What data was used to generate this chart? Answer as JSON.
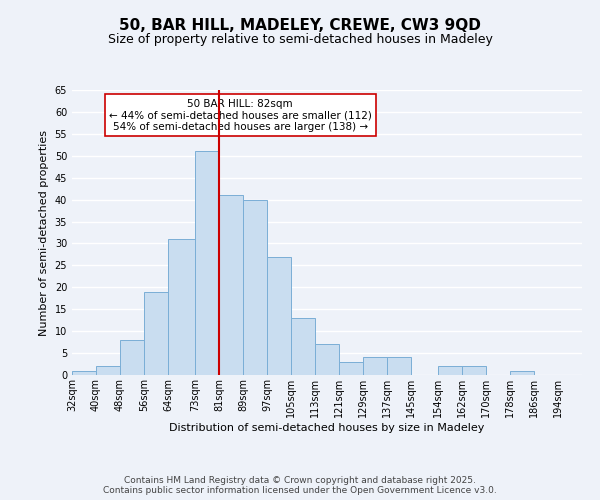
{
  "title": "50, BAR HILL, MADELEY, CREWE, CW3 9QD",
  "subtitle": "Size of property relative to semi-detached houses in Madeley",
  "xlabel": "Distribution of semi-detached houses by size in Madeley",
  "ylabel": "Number of semi-detached properties",
  "bin_labels": [
    "32sqm",
    "40sqm",
    "48sqm",
    "56sqm",
    "64sqm",
    "73sqm",
    "81sqm",
    "89sqm",
    "97sqm",
    "105sqm",
    "113sqm",
    "121sqm",
    "129sqm",
    "137sqm",
    "145sqm",
    "154sqm",
    "162sqm",
    "170sqm",
    "178sqm",
    "186sqm",
    "194sqm"
  ],
  "bin_edges": [
    32,
    40,
    48,
    56,
    64,
    73,
    81,
    89,
    97,
    105,
    113,
    121,
    129,
    137,
    145,
    154,
    162,
    170,
    178,
    186,
    194
  ],
  "bar_values": [
    1,
    2,
    8,
    19,
    31,
    51,
    41,
    40,
    27,
    13,
    7,
    3,
    4,
    4,
    0,
    2,
    2,
    0,
    1,
    0
  ],
  "bar_color": "#c9ddf0",
  "bar_edge_color": "#7aaed6",
  "vline_x": 81,
  "vline_color": "#cc0000",
  "ylim": [
    0,
    65
  ],
  "yticks": [
    0,
    5,
    10,
    15,
    20,
    25,
    30,
    35,
    40,
    45,
    50,
    55,
    60,
    65
  ],
  "annotation_title": "50 BAR HILL: 82sqm",
  "annotation_line1": "← 44% of semi-detached houses are smaller (112)",
  "annotation_line2": "54% of semi-detached houses are larger (138) →",
  "annotation_box_color": "#ffffff",
  "annotation_border_color": "#cc0000",
  "footnote1": "Contains HM Land Registry data © Crown copyright and database right 2025.",
  "footnote2": "Contains public sector information licensed under the Open Government Licence v3.0.",
  "bg_color": "#eef2f9",
  "plot_bg_color": "#eef2f9",
  "grid_color": "#ffffff",
  "title_fontsize": 11,
  "subtitle_fontsize": 9,
  "axis_label_fontsize": 8,
  "tick_fontsize": 7,
  "annotation_fontsize": 7.5,
  "footnote_fontsize": 6.5
}
